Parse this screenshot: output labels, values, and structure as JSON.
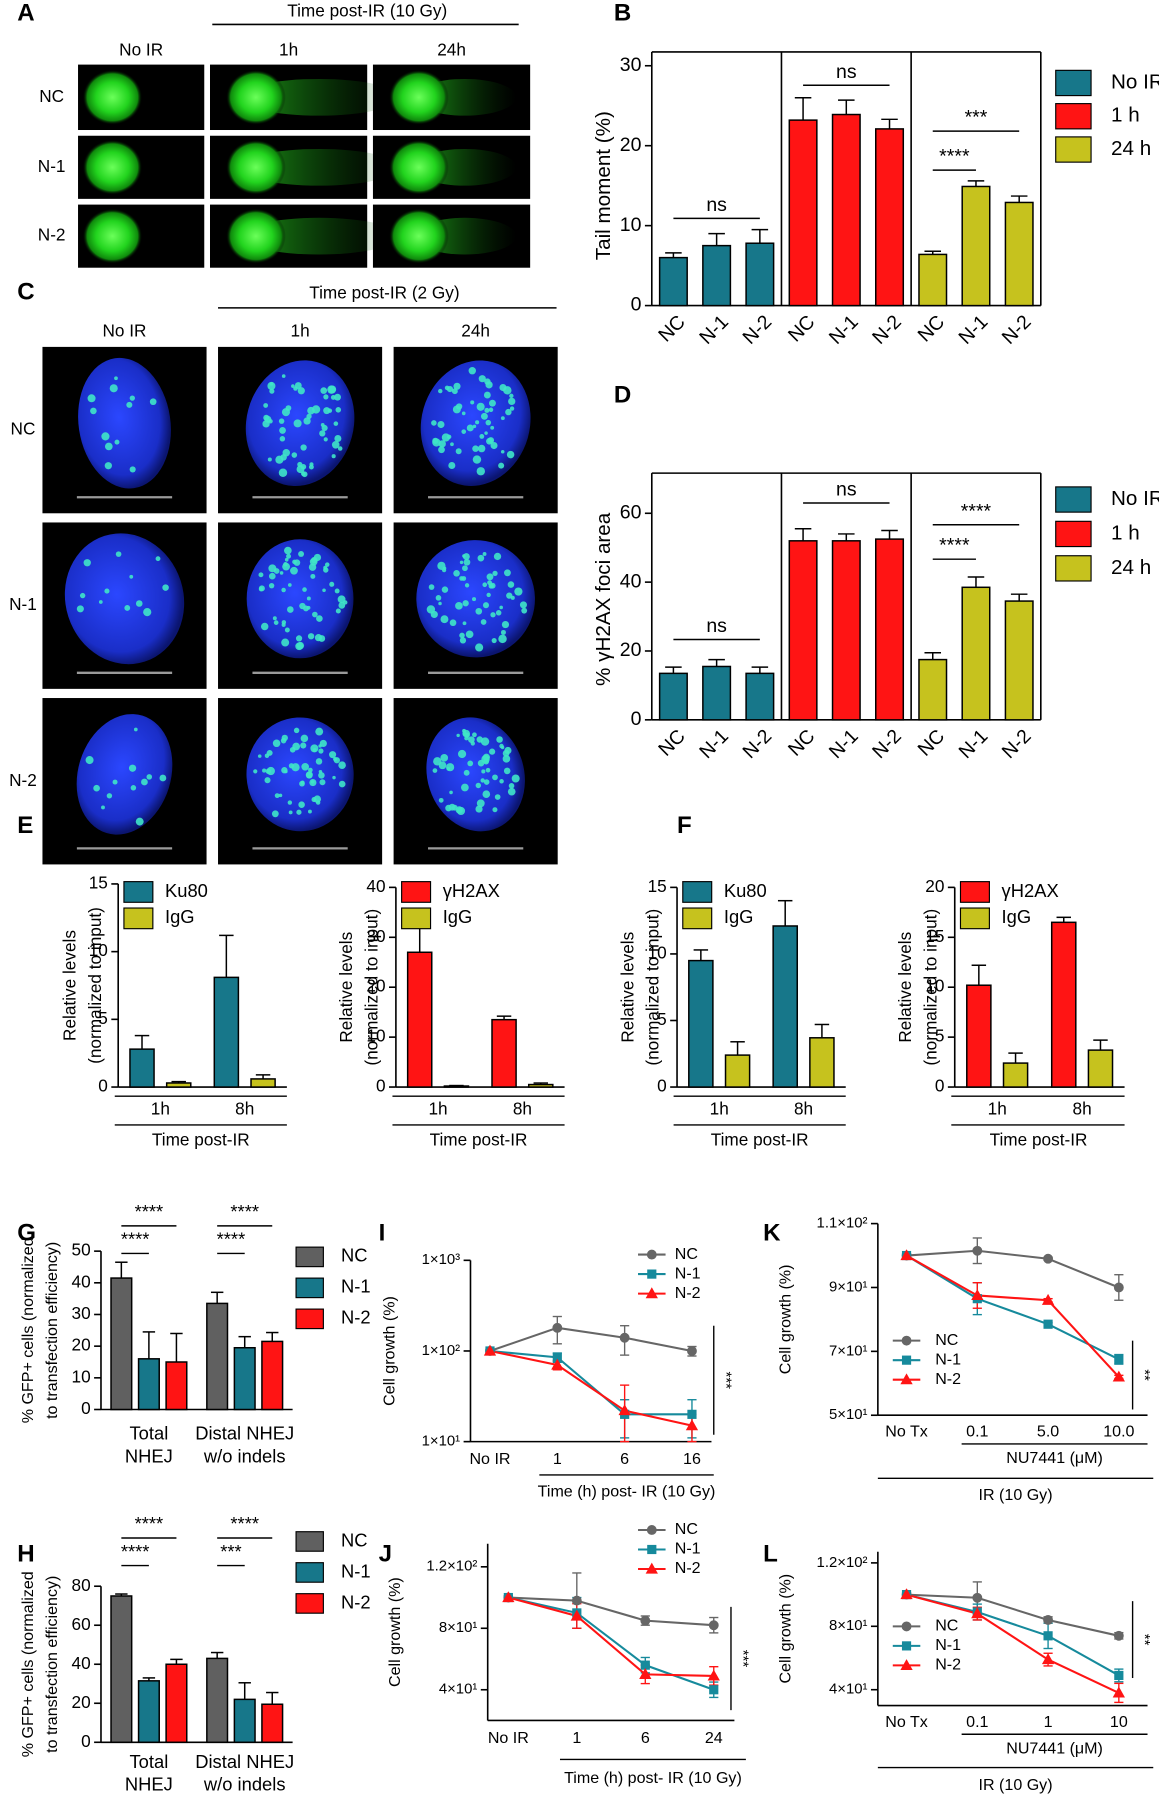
{
  "panel_letters": [
    "A",
    "B",
    "C",
    "D",
    "E",
    "F",
    "G",
    "H",
    "I",
    "J",
    "K",
    "L"
  ],
  "comet_assay": {
    "header": "Time post-IR (10 Gy)",
    "columns": [
      "No IR",
      "1h",
      "24h"
    ],
    "rows": [
      "NC",
      "N-1",
      "N-2"
    ]
  },
  "foci_imaging": {
    "header": "Time post-IR (2 Gy)",
    "columns": [
      "No IR",
      "1h",
      "24h"
    ],
    "rows": [
      "NC",
      "N-1",
      "N-2"
    ]
  },
  "chart_data": [
    {
      "type": "bar",
      "ylabel": "Tail moment (%)",
      "categories": [
        "NC",
        "N-1",
        "N-2",
        "NC",
        "N-1",
        "N-2",
        "NC",
        "N-1",
        "N-2"
      ],
      "series": [
        {
          "name": "No IR",
          "color": "#17778a",
          "values": [
            6.0,
            7.5,
            7.8,
            null,
            null,
            null,
            null,
            null,
            null
          ],
          "errors": [
            0.6,
            1.5,
            1.7,
            null,
            null,
            null,
            null,
            null,
            null
          ]
        },
        {
          "name": "1 h",
          "color": "#ff1414",
          "values": [
            null,
            null,
            null,
            23.2,
            23.9,
            22.1,
            null,
            null,
            null
          ],
          "errors": [
            null,
            null,
            null,
            2.8,
            1.8,
            1.2,
            null,
            null,
            null
          ]
        },
        {
          "name": "24 h",
          "color": "#c6c21e",
          "values": [
            null,
            null,
            null,
            null,
            null,
            null,
            6.4,
            14.9,
            12.9
          ],
          "errors": [
            null,
            null,
            null,
            null,
            null,
            null,
            0.4,
            0.7,
            0.8
          ]
        }
      ],
      "ylim": [
        0,
        30
      ],
      "yticks": [
        0,
        10,
        20,
        30
      ],
      "annotations": [
        "ns",
        "ns",
        "***",
        "****"
      ]
    },
    {
      "type": "bar",
      "ylabel": "% γH2AX foci area",
      "categories": [
        "NC",
        "N-1",
        "N-2",
        "NC",
        "N-1",
        "N-2",
        "NC",
        "N-1",
        "N-2"
      ],
      "series": [
        {
          "name": "No IR",
          "color": "#17778a",
          "values": [
            13.5,
            15.5,
            13.5,
            null,
            null,
            null,
            null,
            null,
            null
          ],
          "errors": [
            1.8,
            2.0,
            1.8,
            null,
            null,
            null,
            null,
            null,
            null
          ]
        },
        {
          "name": "1 h",
          "color": "#ff1414",
          "values": [
            null,
            null,
            null,
            52,
            52,
            52.5,
            null,
            null,
            null
          ],
          "errors": [
            null,
            null,
            null,
            3.5,
            2.0,
            2.5,
            null,
            null,
            null
          ]
        },
        {
          "name": "24 h",
          "color": "#c6c21e",
          "values": [
            null,
            null,
            null,
            null,
            null,
            null,
            17.5,
            38.5,
            34.5
          ],
          "errors": [
            null,
            null,
            null,
            null,
            null,
            null,
            2.0,
            3.0,
            2.0
          ]
        }
      ],
      "ylim": [
        0,
        70
      ],
      "yticks": [
        0,
        20,
        40,
        60
      ],
      "annotations": [
        "ns",
        "ns",
        "****",
        "****"
      ]
    },
    {
      "type": "bar",
      "ylabel": [
        "Relative levels",
        "(normalized to input)"
      ],
      "xlabel": "Time post-IR",
      "categories": [
        "1h",
        "8h"
      ],
      "series": [
        {
          "name": "Ku80",
          "color": "#17778a",
          "values": [
            2.8,
            8.1
          ],
          "errors": [
            1.0,
            3.1
          ]
        },
        {
          "name": "IgG",
          "color": "#c6c21e",
          "values": [
            0.3,
            0.6
          ],
          "errors": [
            0.1,
            0.3
          ]
        }
      ],
      "ylim": [
        0,
        15
      ],
      "yticks": [
        0,
        5,
        10,
        15
      ]
    },
    {
      "type": "bar",
      "ylabel": [
        "Relative levels",
        "(normalized to input)"
      ],
      "xlabel": "Time post-IR",
      "categories": [
        "1h",
        "8h"
      ],
      "series": [
        {
          "name": "γH2AX",
          "color": "#ff1414",
          "values": [
            27,
            13.5
          ],
          "errors": [
            6.0,
            0.7
          ]
        },
        {
          "name": "IgG",
          "color": "#c6c21e",
          "values": [
            0.2,
            0.5
          ],
          "errors": [
            0.1,
            0.3
          ]
        }
      ],
      "ylim": [
        0,
        40
      ],
      "yticks": [
        0,
        10,
        20,
        30,
        40
      ]
    },
    {
      "type": "bar",
      "ylabel": [
        "Relative levels",
        "(normalized to input)"
      ],
      "xlabel": "Time post-IR",
      "categories": [
        "1h",
        "8h"
      ],
      "series": [
        {
          "name": "Ku80",
          "color": "#17778a",
          "values": [
            9.5,
            12.1
          ],
          "errors": [
            0.8,
            1.9
          ]
        },
        {
          "name": "IgG",
          "color": "#c6c21e",
          "values": [
            2.4,
            3.7
          ],
          "errors": [
            1.0,
            1.0
          ]
        }
      ],
      "ylim": [
        0,
        15
      ],
      "yticks": [
        0,
        5,
        10,
        15
      ]
    },
    {
      "type": "bar",
      "ylabel": [
        "Relative levels",
        "(normalized to input)"
      ],
      "xlabel": "Time post-IR",
      "categories": [
        "1h",
        "8h"
      ],
      "series": [
        {
          "name": "γH2AX",
          "color": "#ff1414",
          "values": [
            10.2,
            16.5
          ],
          "errors": [
            2.0,
            0.5
          ]
        },
        {
          "name": "IgG",
          "color": "#c6c21e",
          "values": [
            2.4,
            3.7
          ],
          "errors": [
            1.0,
            1.0
          ]
        }
      ],
      "ylim": [
        0,
        20
      ],
      "yticks": [
        0,
        5,
        10,
        15,
        20
      ]
    },
    {
      "type": "bar",
      "ylabel": [
        "% GFP+ cells (normalized",
        "to transfection efficiency)"
      ],
      "categories": [
        [
          "Total",
          "NHEJ"
        ],
        [
          "Distal NHEJ",
          "w/o indels"
        ]
      ],
      "series": [
        {
          "name": "NC",
          "color": "#606060",
          "values": [
            41.5,
            33.5
          ],
          "errors": [
            5.0,
            3.5
          ]
        },
        {
          "name": "N-1",
          "color": "#17778a",
          "values": [
            16,
            19.5
          ],
          "errors": [
            8.5,
            3.5
          ]
        },
        {
          "name": "N-2",
          "color": "#ff1414",
          "values": [
            15,
            21.5
          ],
          "errors": [
            9.0,
            2.8
          ]
        }
      ],
      "ylim": [
        0,
        50
      ],
      "yticks": [
        0,
        10,
        20,
        30,
        40,
        50
      ],
      "annotations": [
        "****",
        "****",
        "****",
        "****"
      ]
    },
    {
      "type": "bar",
      "ylabel": [
        "% GFP+ cells (normalized",
        "to transfection efficiency)"
      ],
      "categories": [
        [
          "Total",
          "NHEJ"
        ],
        [
          "Distal NHEJ",
          "w/o indels"
        ]
      ],
      "series": [
        {
          "name": "NC",
          "color": "#606060",
          "values": [
            75,
            43
          ],
          "errors": [
            1.0,
            3.0
          ]
        },
        {
          "name": "N-1",
          "color": "#17778a",
          "values": [
            31.5,
            22
          ],
          "errors": [
            1.5,
            8.5
          ]
        },
        {
          "name": "N-2",
          "color": "#ff1414",
          "values": [
            40,
            19.5
          ],
          "errors": [
            2.5,
            6.0
          ]
        }
      ],
      "ylim": [
        0,
        80
      ],
      "yticks": [
        0,
        20,
        40,
        60,
        80
      ],
      "annotations": [
        "****",
        "****",
        "****",
        "***"
      ]
    },
    {
      "type": "line",
      "log_y": true,
      "ylabel": "Cell growth (%)",
      "xlabel": "Time (h) post- IR (10 Gy)",
      "categories": [
        "No IR",
        "1",
        "6",
        "16"
      ],
      "series": [
        {
          "name": "NC",
          "color": "#666666",
          "marker": "circle",
          "values": [
            100,
            180,
            140,
            100
          ],
          "errors": [
            5,
            60,
            50,
            12
          ]
        },
        {
          "name": "N-1",
          "color": "#168a9c",
          "marker": "square",
          "values": [
            100,
            85,
            20,
            20
          ],
          "errors": [
            3,
            10,
            9,
            9
          ]
        },
        {
          "name": "N-2",
          "color": "#ff1414",
          "marker": "triangle",
          "values": [
            100,
            70,
            22,
            15
          ],
          "errors": [
            3,
            8,
            20,
            5
          ]
        }
      ],
      "ylim": [
        10,
        1000
      ],
      "yticks": [
        {
          "value": 10,
          "label": "1×10¹"
        },
        {
          "value": 100,
          "label": "1×10²"
        },
        {
          "value": 1000,
          "label": "1×10³"
        }
      ],
      "annotations": [
        "***"
      ]
    },
    {
      "type": "line",
      "ylabel": "Cell growth (%)",
      "xlabel": "Time (h) post- IR (10 Gy)",
      "categories": [
        "No IR",
        "1",
        "6",
        "24"
      ],
      "series": [
        {
          "name": "NC",
          "color": "#666666",
          "marker": "circle",
          "values": [
            100,
            98,
            85,
            82
          ],
          "errors": [
            1,
            18,
            3,
            5
          ]
        },
        {
          "name": "N-1",
          "color": "#168a9c",
          "marker": "square",
          "values": [
            100,
            90,
            56,
            40
          ],
          "errors": [
            1,
            10,
            5,
            5
          ]
        },
        {
          "name": "N-2",
          "color": "#ff1414",
          "marker": "triangle",
          "values": [
            100,
            88,
            50,
            49
          ],
          "errors": [
            1,
            8,
            6,
            6
          ]
        }
      ],
      "ylim": [
        20,
        135
      ],
      "yticks": [
        {
          "value": 40,
          "label": "4×10¹"
        },
        {
          "value": 80,
          "label": "8×10¹"
        },
        {
          "value": 120,
          "label": "1.2×10²"
        }
      ],
      "annotations": [
        "***"
      ]
    },
    {
      "type": "line",
      "ylabel": "Cell growth (%)",
      "xlabel": "NU7441 (μM)",
      "xlabel2": "IR (10 Gy)",
      "categories": [
        "No Tx",
        "0.1",
        "5.0",
        "10.0"
      ],
      "series": [
        {
          "name": "NC",
          "color": "#666666",
          "marker": "circle",
          "values": [
            100,
            101.5,
            99,
            90
          ],
          "errors": [
            0.5,
            4,
            0.5,
            4
          ]
        },
        {
          "name": "N-1",
          "color": "#168a9c",
          "marker": "square",
          "values": [
            100,
            86.5,
            78.5,
            67.5
          ],
          "errors": [
            0.5,
            5,
            0.5,
            1.5
          ]
        },
        {
          "name": "N-2",
          "color": "#ff1414",
          "marker": "triangle",
          "values": [
            100,
            87.5,
            86,
            62
          ],
          "errors": [
            0.5,
            4,
            0.5,
            0.5
          ]
        }
      ],
      "ylim": [
        50,
        110
      ],
      "yticks": [
        {
          "value": 50,
          "label": "5×10¹"
        },
        {
          "value": 70,
          "label": "7×10¹"
        },
        {
          "value": 90,
          "label": "9×10¹"
        },
        {
          "value": 110,
          "label": "1.1×10²"
        }
      ],
      "annotations": [
        "**"
      ]
    },
    {
      "type": "line",
      "ylabel": "Cell growth (%)",
      "xlabel": "NU7441 (μM)",
      "xlabel2": "IR (10 Gy)",
      "categories": [
        "No Tx",
        "0.1",
        "1",
        "10"
      ],
      "series": [
        {
          "name": "NC",
          "color": "#666666",
          "marker": "circle",
          "values": [
            100,
            98,
            84,
            74
          ],
          "errors": [
            1,
            10,
            2,
            2
          ]
        },
        {
          "name": "N-1",
          "color": "#168a9c",
          "marker": "square",
          "values": [
            100,
            89,
            74,
            49
          ],
          "errors": [
            1,
            5,
            8,
            4
          ]
        },
        {
          "name": "N-2",
          "color": "#ff1414",
          "marker": "triangle",
          "values": [
            100,
            88,
            59,
            38
          ],
          "errors": [
            1,
            4,
            4,
            6
          ]
        }
      ],
      "ylim": [
        30,
        127
      ],
      "yticks": [
        {
          "value": 40,
          "label": "4×10¹"
        },
        {
          "value": 80,
          "label": "8×10¹"
        },
        {
          "value": 120,
          "label": "1.2×10²"
        }
      ],
      "annotations": [
        "**"
      ]
    }
  ]
}
